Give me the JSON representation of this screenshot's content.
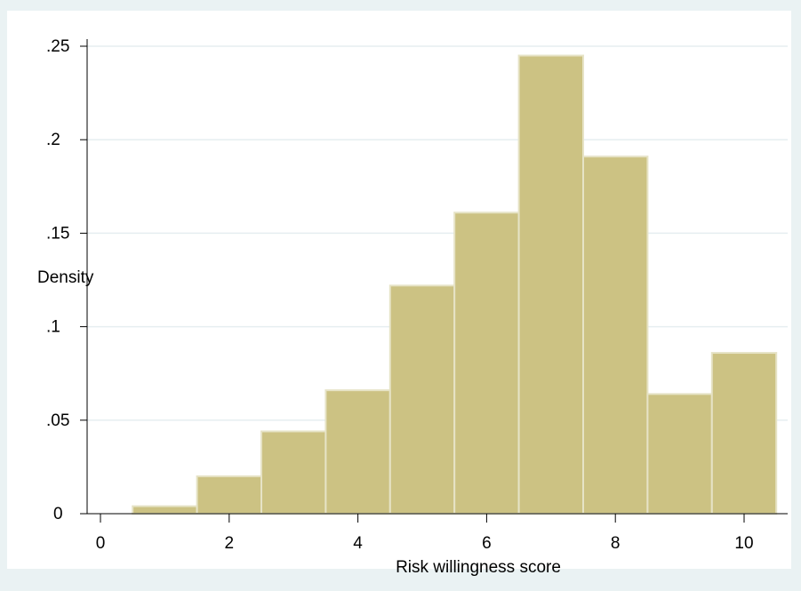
{
  "chart_data": {
    "type": "bar",
    "subtype": "histogram",
    "xlabel": "Risk willingness score",
    "ylabel": "Density",
    "xlim": [
      -0.7,
      10.9
    ],
    "ylim": [
      0,
      0.25
    ],
    "x_ticks": [
      0,
      2,
      4,
      6,
      8,
      10
    ],
    "x_tick_labels": [
      "0",
      "2",
      "4",
      "6",
      "8",
      "10"
    ],
    "y_ticks": [
      0,
      0.05,
      0.1,
      0.15,
      0.2,
      0.25
    ],
    "y_tick_labels": [
      "0",
      ".05",
      ".1",
      ".15",
      ".2",
      ".25"
    ],
    "bin_width": 1,
    "bins": [
      {
        "x": 1,
        "value": 0.004
      },
      {
        "x": 2,
        "value": 0.02
      },
      {
        "x": 3,
        "value": 0.044
      },
      {
        "x": 4,
        "value": 0.066
      },
      {
        "x": 5,
        "value": 0.122
      },
      {
        "x": 6,
        "value": 0.161
      },
      {
        "x": 7,
        "value": 0.245
      },
      {
        "x": 8,
        "value": 0.191
      },
      {
        "x": 9,
        "value": 0.064
      },
      {
        "x": 10,
        "value": 0.086
      }
    ],
    "grid": true,
    "colors": {
      "bar_fill": "#ccc283",
      "bar_stroke": "#e6e3c6",
      "plot_bg": "#ffffff",
      "page_bg": "#eaf2f3",
      "grid": "#e6eef0"
    }
  }
}
